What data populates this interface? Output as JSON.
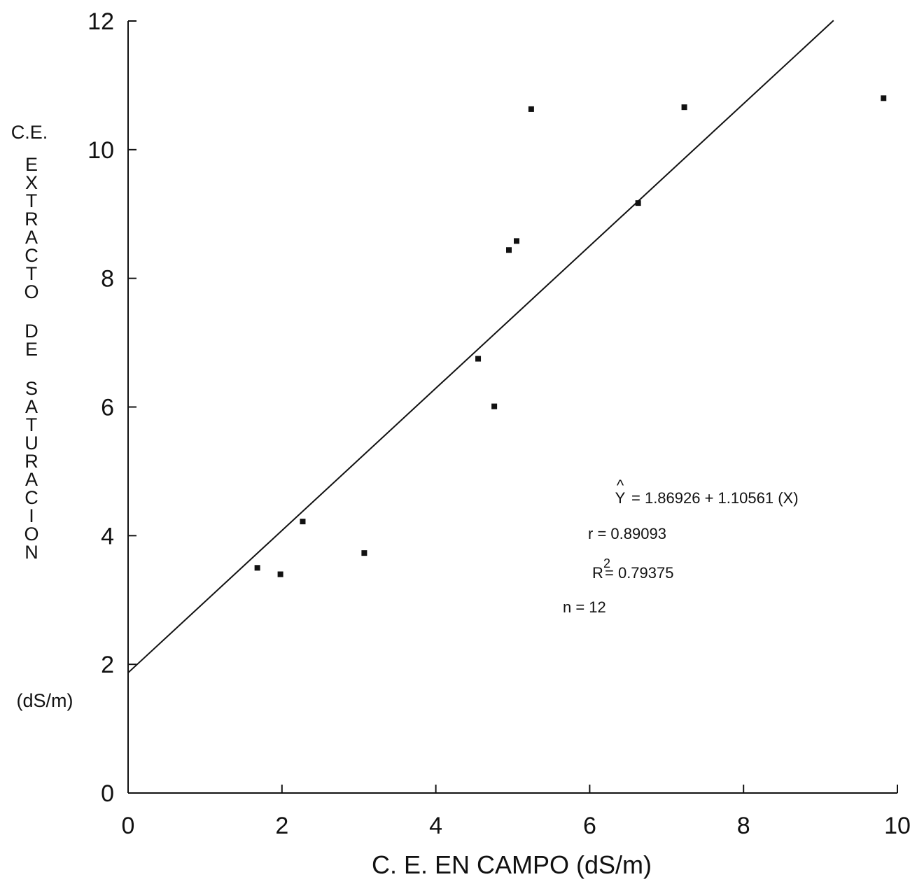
{
  "chart_data": {
    "type": "scatter",
    "title": "",
    "xlabel": "C. E. EN CAMPO (dS/m)",
    "ylabel": {
      "top": "C.E.",
      "vertical_words": [
        "EXTRACTO",
        "DE",
        "SATURACION"
      ],
      "unit": "(dS/m)"
    },
    "xlim": [
      0,
      10
    ],
    "ylim": [
      0,
      12
    ],
    "x_ticks": [
      0,
      2,
      4,
      6,
      8,
      10
    ],
    "y_ticks": [
      0,
      2,
      4,
      6,
      8,
      10,
      12
    ],
    "grid": false,
    "points": [
      {
        "x": 1.68,
        "y": 3.5
      },
      {
        "x": 1.98,
        "y": 3.4
      },
      {
        "x": 2.27,
        "y": 4.22
      },
      {
        "x": 3.07,
        "y": 3.73
      },
      {
        "x": 4.55,
        "y": 6.75
      },
      {
        "x": 4.76,
        "y": 6.01
      },
      {
        "x": 4.95,
        "y": 8.44
      },
      {
        "x": 5.05,
        "y": 8.58
      },
      {
        "x": 5.24,
        "y": 10.63
      },
      {
        "x": 6.63,
        "y": 9.17
      },
      {
        "x": 7.23,
        "y": 10.66
      },
      {
        "x": 9.82,
        "y": 10.8
      }
    ],
    "regression": {
      "intercept": 1.86926,
      "slope": 1.10561,
      "x_range": [
        0,
        9.17
      ]
    },
    "annotations": {
      "equation_lhs": "Y",
      "equation_rhs": "= 1.86926 + 1.10561 (X)",
      "r": "r = 0.89093",
      "r2_prefix": "R",
      "r2_sup": "2",
      "r2_value": "= 0.79375",
      "n": "n = 12"
    },
    "colors": {
      "ink": "#111111",
      "background": "#ffffff"
    }
  }
}
